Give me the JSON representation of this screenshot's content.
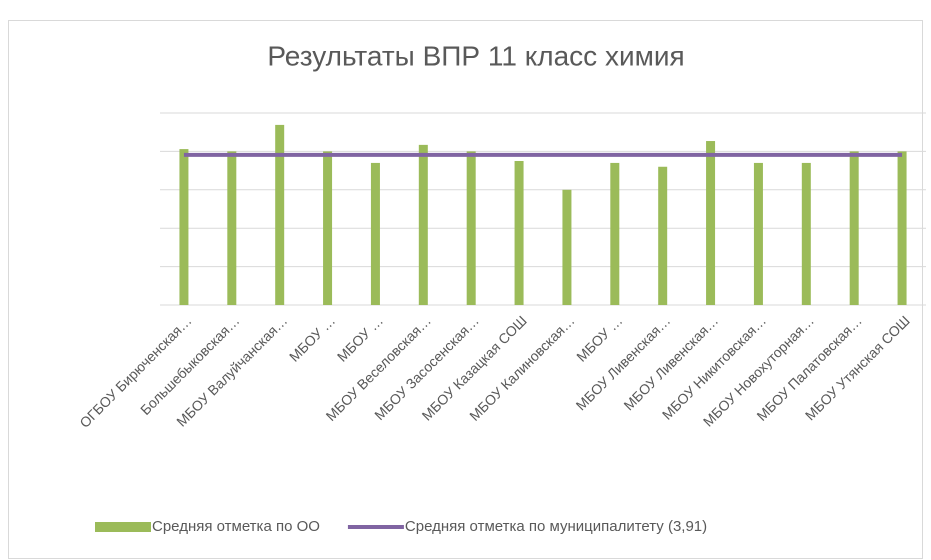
{
  "chart_data": {
    "type": "bar",
    "title": "Результаты ВПР 11 класс химия",
    "categories": [
      "ОГБОУ Бирюченская…",
      "Большебыковская…",
      "МБОУ Валуйчанская…",
      "МБОУ …",
      "МБОУ …",
      "МБОУ Веселовская…",
      "МБОУ Засосенская…",
      "МБОУ Казацкая СОШ",
      "МБОУ Калиновская…",
      "МБОУ …",
      "МБОУ Ливенская…",
      "МБОУ Ливенская…",
      "МБОУ Никитовская…",
      "МБОУ Новохуторная…",
      "МБОУ Палатовская…",
      "МБОУ Утянская СОШ"
    ],
    "series": [
      {
        "name": "Средняя отметка по ОО",
        "type": "bar",
        "color": "#9bbb59",
        "values": [
          4.06,
          4.0,
          4.69,
          4.0,
          3.7,
          4.17,
          4.0,
          3.75,
          3.0,
          3.7,
          3.6,
          4.27,
          3.7,
          3.7,
          4.0,
          4.0
        ]
      },
      {
        "name": "Средняя отметка по муниципалитету (3,91)",
        "type": "line",
        "color": "#8064a2",
        "values": [
          3.91,
          3.91,
          3.91,
          3.91,
          3.91,
          3.91,
          3.91,
          3.91,
          3.91,
          3.91,
          3.91,
          3.91,
          3.91,
          3.91,
          3.91,
          3.91
        ]
      }
    ],
    "ylim": [
      0,
      5
    ],
    "yticks": [
      0,
      1,
      2,
      3,
      4,
      5
    ],
    "grid": true,
    "legend": "bottom"
  }
}
